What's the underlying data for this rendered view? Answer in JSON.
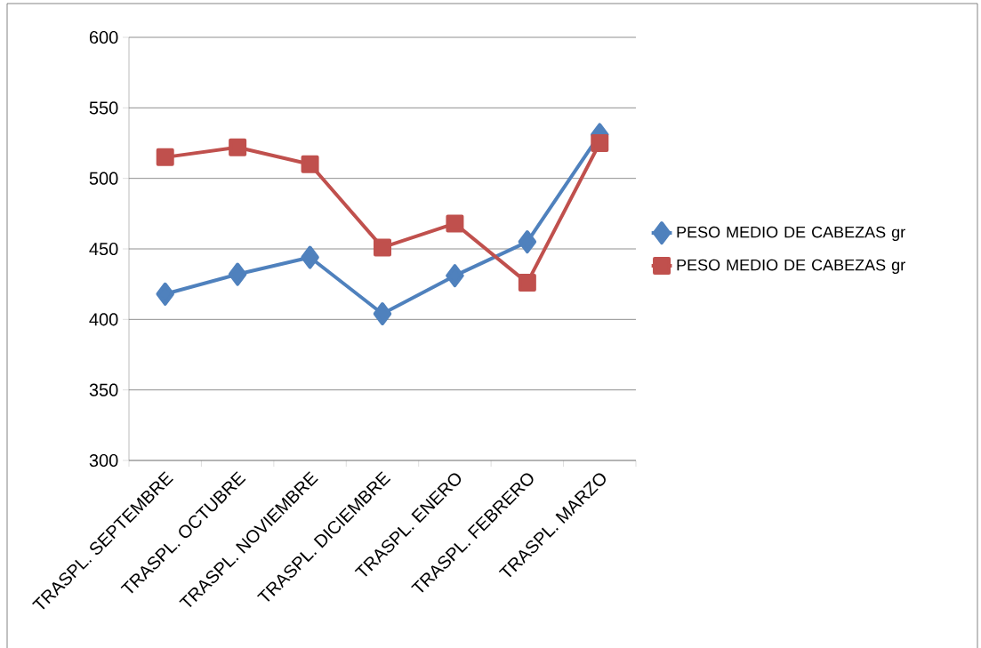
{
  "chart_data": {
    "type": "line",
    "categories": [
      "TRASPL. SEPTEMBRE",
      "TRASPL. OCTUBRE",
      "TRASPL. NOVIEMBRE",
      "TRASPL. DICIEMBRE",
      "TRASPL. ENERO",
      "TRASPL. FEBRERO",
      "TRASPL. MARZO"
    ],
    "series": [
      {
        "name": "PESO MEDIO DE CABEZAS gr",
        "color": "#4f81bd",
        "marker": "diamond",
        "values": [
          418,
          432,
          444,
          404,
          431,
          455,
          531
        ]
      },
      {
        "name": "PESO MEDIO DE CABEZAS gr",
        "color": "#c0504d",
        "marker": "square",
        "values": [
          515,
          522,
          510,
          451,
          468,
          426,
          525
        ]
      }
    ],
    "ylim": [
      300,
      600
    ],
    "yticks": [
      300,
      350,
      400,
      450,
      500,
      550,
      600
    ],
    "grid": "y",
    "legend": "right"
  }
}
